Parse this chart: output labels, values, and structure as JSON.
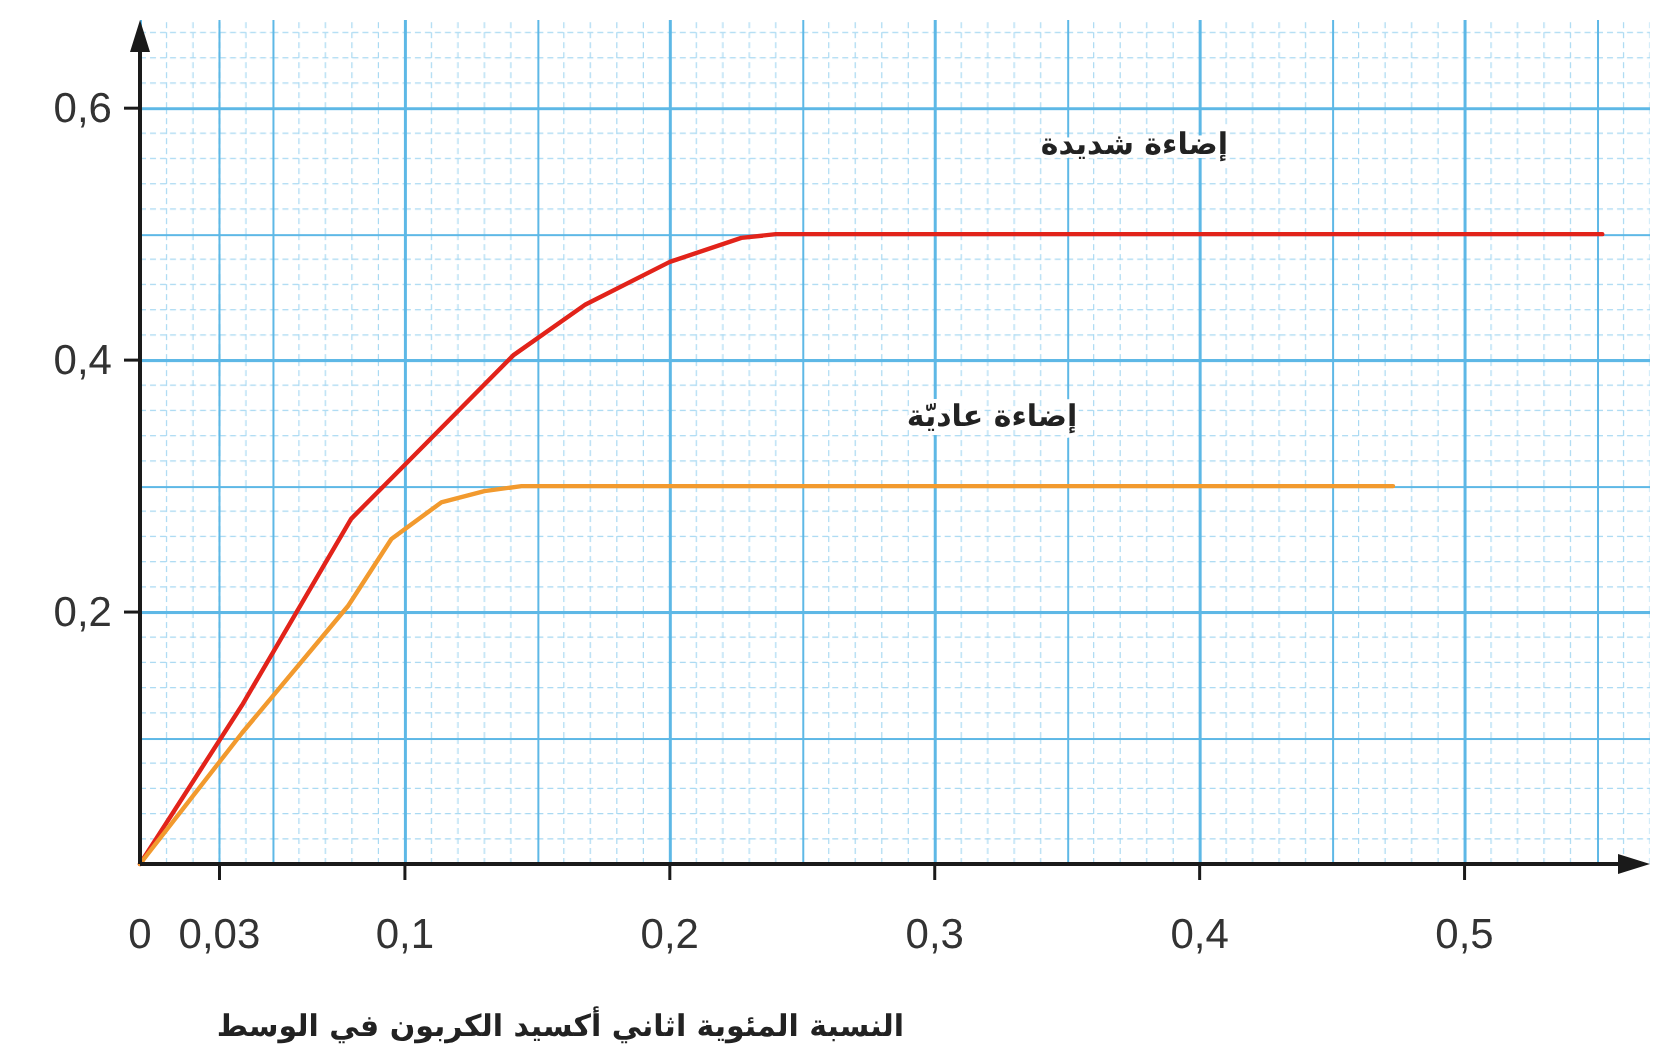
{
  "chart_data": {
    "type": "line",
    "xlabel": "النسبة المئوية اثاني أكسيد الكربون في الوسط",
    "xlim": [
      0,
      0.57
    ],
    "ylim": [
      0,
      0.67
    ],
    "xticks": [
      {
        "value": 0,
        "label": "0"
      },
      {
        "value": 0.03,
        "label": "0,03"
      },
      {
        "value": 0.1,
        "label": "0,1"
      },
      {
        "value": 0.2,
        "label": "0,2"
      },
      {
        "value": 0.3,
        "label": "0,3"
      },
      {
        "value": 0.4,
        "label": "0,4"
      },
      {
        "value": 0.5,
        "label": "0,5"
      }
    ],
    "yticks": [
      {
        "value": 0.2,
        "label": "0,2"
      },
      {
        "value": 0.4,
        "label": "0,4"
      },
      {
        "value": 0.6,
        "label": "0,6"
      }
    ],
    "grid": true,
    "line_style": "solid",
    "series": [
      {
        "name": "إضاءة شديدة",
        "color": "#e2231a",
        "x": [
          0,
          0.0385,
          0.0797,
          0.1,
          0.141,
          0.168,
          0.2,
          0.227,
          0.24,
          0.552
        ],
        "values": [
          0,
          0.126,
          0.274,
          0.317,
          0.404,
          0.444,
          0.478,
          0.497,
          0.5,
          0.5
        ]
      },
      {
        "name": "إضاءة عاديّة",
        "color": "#f29a2e",
        "x": [
          0,
          0.0385,
          0.0786,
          0.0949,
          0.1137,
          0.13,
          0.144,
          0.473
        ],
        "values": [
          0,
          0.104,
          0.205,
          0.258,
          0.287,
          0.296,
          0.3,
          0.3
        ]
      }
    ]
  }
}
